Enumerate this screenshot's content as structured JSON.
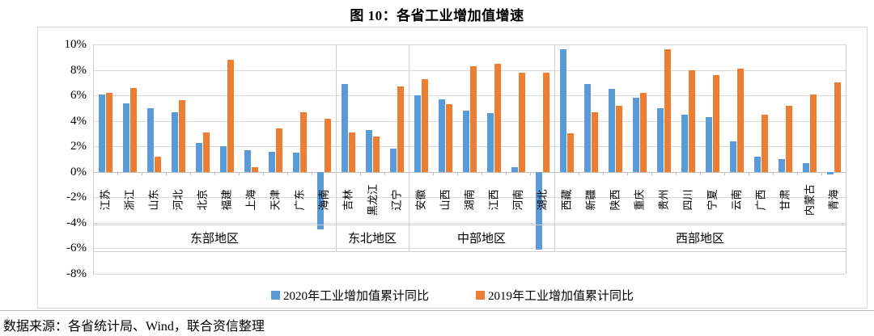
{
  "title": "图 10：各省工业增加值增速",
  "source_note": "数据来源：各省统计局、Wind，联合资信整理",
  "colors": {
    "series_2020": "#5B9BD5",
    "series_2019": "#ED7D31",
    "gridline": "#d9d9d9"
  },
  "chart_data": {
    "type": "bar",
    "title": "图 10：各省工业增加值增速",
    "categories": [
      "江苏",
      "浙江",
      "山东",
      "河北",
      "北京",
      "福建",
      "上海",
      "天津",
      "广东",
      "海南",
      "吉林",
      "黑龙江",
      "辽宁",
      "安徽",
      "山西",
      "湖南",
      "江西",
      "河南",
      "湖北",
      "西藏",
      "新疆",
      "陕西",
      "重庆",
      "贵州",
      "四川",
      "宁夏",
      "云南",
      "广西",
      "甘肃",
      "内蒙古",
      "青海"
    ],
    "groups": [
      {
        "label": "东部地区",
        "count": 10
      },
      {
        "label": "东北地区",
        "count": 3
      },
      {
        "label": "中部地区",
        "count": 6
      },
      {
        "label": "西部地区",
        "count": 12
      }
    ],
    "series": [
      {
        "name": "2020年工业增加值累计同比",
        "color": "#5B9BD5",
        "values": [
          6.1,
          5.4,
          5.0,
          4.7,
          2.3,
          2.0,
          1.7,
          1.6,
          1.5,
          -4.5,
          6.9,
          3.3,
          1.8,
          6.0,
          5.7,
          4.8,
          4.6,
          0.4,
          -6.1,
          9.6,
          6.9,
          6.5,
          5.8,
          5.0,
          4.5,
          4.3,
          2.4,
          1.2,
          1.0,
          0.7,
          -0.2
        ]
      },
      {
        "name": "2019年工业增加值累计同比",
        "color": "#ED7D31",
        "values": [
          6.2,
          6.6,
          1.2,
          5.6,
          3.1,
          8.8,
          0.4,
          3.4,
          4.7,
          4.2,
          3.1,
          2.8,
          6.7,
          7.3,
          5.3,
          8.3,
          8.5,
          7.8,
          7.8,
          3.0,
          4.7,
          5.2,
          6.2,
          9.6,
          8.0,
          7.6,
          8.1,
          4.5,
          5.2,
          6.1,
          7.0
        ]
      }
    ],
    "ylim": [
      -8,
      10
    ],
    "ytick_step": 2,
    "ytick_format": "percent",
    "grid": true,
    "legend_position": "bottom"
  }
}
